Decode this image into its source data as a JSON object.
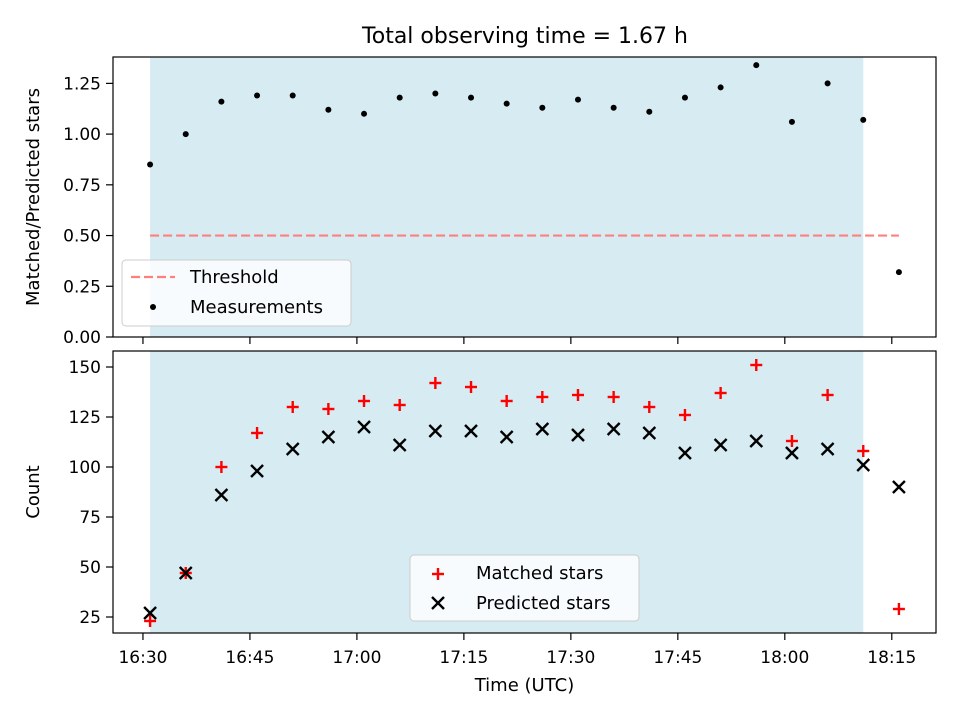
{
  "figure_title": "Total observing time = 1.67 h",
  "colors": {
    "shade": "#add8e6",
    "threshold": "#ff7f7f",
    "measurement": "#000000",
    "matched": "#ff0000",
    "predicted": "#000000"
  },
  "x_axis": {
    "label": "Time (UTC)",
    "range_minutes_since_1630": [
      -4.2,
      111.2
    ],
    "ticks": [
      {
        "value": 0,
        "label": "16:30"
      },
      {
        "value": 15,
        "label": "16:45"
      },
      {
        "value": 30,
        "label": "17:00"
      },
      {
        "value": 45,
        "label": "17:15"
      },
      {
        "value": 60,
        "label": "17:30"
      },
      {
        "value": 75,
        "label": "17:45"
      },
      {
        "value": 90,
        "label": "18:00"
      },
      {
        "value": 105,
        "label": "18:15"
      }
    ]
  },
  "chart_data": [
    {
      "type": "scatter",
      "title": "Total observing time = 1.67 h",
      "xlabel": "Time (UTC)",
      "ylabel": "Matched/Predicted stars",
      "ylim": [
        0,
        1.38
      ],
      "yticks": [
        0.0,
        0.25,
        0.5,
        0.75,
        1.0,
        1.25
      ],
      "ytick_labels": [
        "0.00",
        "0.25",
        "0.50",
        "0.75",
        "1.00",
        "1.25"
      ],
      "shaded_span": {
        "x_start": "16:31",
        "x_end": "18:11"
      },
      "legend_position": "lower-left",
      "legend": [
        "Threshold",
        "Measurements"
      ],
      "threshold": {
        "name": "Threshold",
        "value": 0.5,
        "x_start": "16:31",
        "x_end": "18:16",
        "style": "dashed"
      },
      "series": [
        {
          "name": "Measurements",
          "x": [
            "16:31",
            "16:36",
            "16:41",
            "16:46",
            "16:51",
            "16:56",
            "17:01",
            "17:06",
            "17:11",
            "17:16",
            "17:21",
            "17:26",
            "17:31",
            "17:36",
            "17:41",
            "17:46",
            "17:51",
            "17:56",
            "18:01",
            "18:06",
            "18:11",
            "18:16"
          ],
          "y": [
            0.85,
            1.0,
            1.16,
            1.19,
            1.19,
            1.12,
            1.1,
            1.18,
            1.2,
            1.18,
            1.15,
            1.13,
            1.17,
            1.13,
            1.11,
            1.18,
            1.23,
            1.34,
            1.06,
            1.25,
            1.07,
            0.32
          ]
        }
      ]
    },
    {
      "type": "scatter",
      "xlabel": "Time (UTC)",
      "ylabel": "Count",
      "ylim": [
        17,
        158
      ],
      "yticks": [
        25,
        50,
        75,
        100,
        125,
        150
      ],
      "ytick_labels": [
        "25",
        "50",
        "75",
        "100",
        "125",
        "150"
      ],
      "shaded_span": {
        "x_start": "16:31",
        "x_end": "18:11"
      },
      "legend_position": "lower-center",
      "legend": [
        "Matched stars",
        "Predicted stars"
      ],
      "series": [
        {
          "name": "Matched stars",
          "marker": "+",
          "x": [
            "16:31",
            "16:36",
            "16:41",
            "16:46",
            "16:51",
            "16:56",
            "17:01",
            "17:06",
            "17:11",
            "17:16",
            "17:21",
            "17:26",
            "17:31",
            "17:36",
            "17:41",
            "17:46",
            "17:51",
            "17:56",
            "18:01",
            "18:06",
            "18:11",
            "18:16"
          ],
          "y": [
            23,
            47,
            100,
            117,
            130,
            129,
            133,
            131,
            142,
            140,
            133,
            135,
            136,
            135,
            130,
            126,
            137,
            151,
            113,
            136,
            108,
            29
          ]
        },
        {
          "name": "Predicted stars",
          "marker": "x",
          "x": [
            "16:31",
            "16:36",
            "16:41",
            "16:46",
            "16:51",
            "16:56",
            "17:01",
            "17:06",
            "17:11",
            "17:16",
            "17:21",
            "17:26",
            "17:31",
            "17:36",
            "17:41",
            "17:46",
            "17:51",
            "17:56",
            "18:01",
            "18:06",
            "18:11",
            "18:16"
          ],
          "y": [
            27,
            47,
            86,
            98,
            109,
            115,
            120,
            111,
            118,
            118,
            115,
            119,
            116,
            119,
            117,
            107,
            111,
            113,
            107,
            109,
            101,
            90
          ]
        }
      ]
    }
  ]
}
